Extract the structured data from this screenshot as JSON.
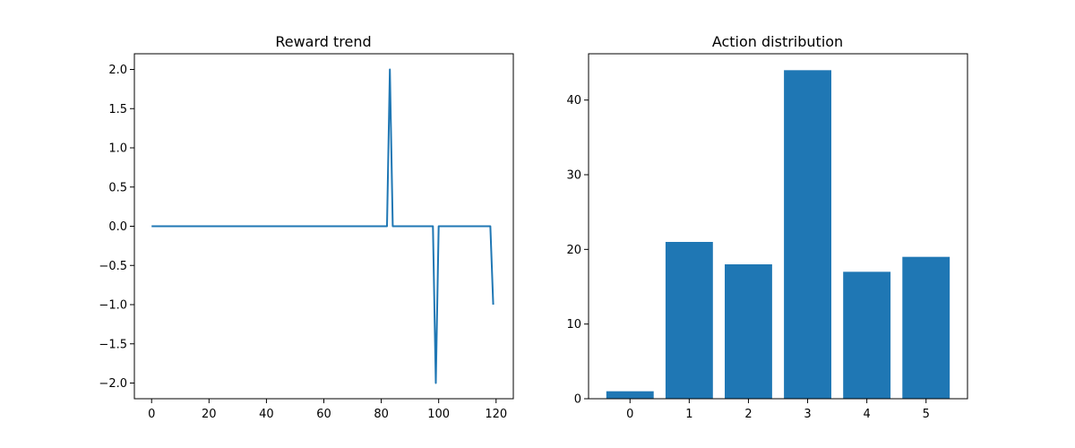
{
  "colors": {
    "series": "#1f77b4",
    "axes": "#000000",
    "background": "#ffffff"
  },
  "chart_data": [
    {
      "type": "line",
      "title": "Reward trend",
      "xlabel": "",
      "ylabel": "",
      "xlim": [
        -6,
        126
      ],
      "ylim": [
        -2.2,
        2.2
      ],
      "xticks": [
        0,
        20,
        40,
        60,
        80,
        100,
        120
      ],
      "yticks": [
        -2.0,
        -1.5,
        -1.0,
        -0.5,
        0.0,
        0.5,
        1.0,
        1.5,
        2.0
      ],
      "grid": false,
      "x": [
        0,
        82,
        83,
        84,
        98,
        99,
        100,
        118,
        119
      ],
      "y": [
        0.0,
        0.0,
        2.0,
        0.0,
        0.0,
        -2.0,
        0.0,
        0.0,
        -1.0
      ]
    },
    {
      "type": "bar",
      "title": "Action distribution",
      "xlabel": "",
      "ylabel": "",
      "categories": [
        "0",
        "1",
        "2",
        "3",
        "4",
        "5"
      ],
      "values": [
        1,
        21,
        18,
        44,
        17,
        19
      ],
      "ylim": [
        0,
        46.2
      ],
      "yticks": [
        0,
        10,
        20,
        30,
        40
      ],
      "grid": false
    }
  ]
}
